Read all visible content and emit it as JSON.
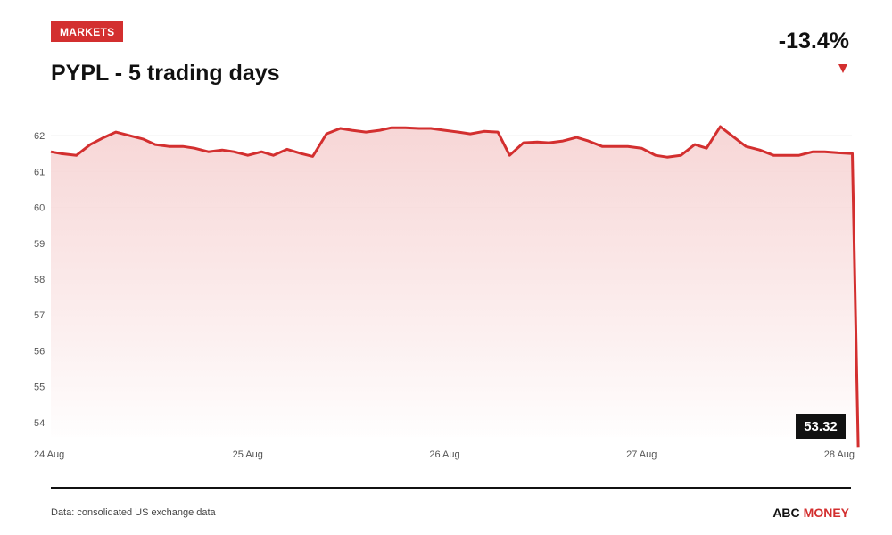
{
  "header": {
    "badge": "MARKETS",
    "title": "PYPL - 5 trading days",
    "change": "-13.4%"
  },
  "footer": {
    "source": "Data: consolidated US exchange data",
    "brand_part1": "ABC",
    "brand_part2": "MONEY"
  },
  "colors": {
    "accent": "#d32f2f",
    "line": "#d32f2f",
    "area_top": "#f6d2d2",
    "area_bottom": "#ffffff",
    "grid": "#ececec",
    "tooltip_bg": "#111111"
  },
  "chart_data": {
    "type": "area",
    "title": "PYPL - 5 trading days",
    "xlabel": "",
    "ylabel": "",
    "ylim": [
      53.6,
      62.4
    ],
    "yticks": [
      54,
      55,
      56,
      57,
      58,
      59,
      60,
      61,
      62
    ],
    "xlim": [
      0,
      4
    ],
    "xticks": [
      {
        "value": 0,
        "label": "24 Aug"
      },
      {
        "value": 1,
        "label": "25 Aug"
      },
      {
        "value": 2,
        "label": "26 Aug"
      },
      {
        "value": 3,
        "label": "27 Aug"
      },
      {
        "value": 4,
        "label": "28 Aug"
      }
    ],
    "grid": true,
    "last_value_label": "53.32",
    "series": [
      {
        "values": [
          [
            0.0,
            61.55
          ],
          [
            0.05,
            61.5
          ],
          [
            0.13,
            61.45
          ],
          [
            0.2,
            61.75
          ],
          [
            0.27,
            61.95
          ],
          [
            0.33,
            62.1
          ],
          [
            0.4,
            62.0
          ],
          [
            0.47,
            61.9
          ],
          [
            0.53,
            61.75
          ],
          [
            0.6,
            61.7
          ],
          [
            0.67,
            61.7
          ],
          [
            0.73,
            61.65
          ],
          [
            0.8,
            61.55
          ],
          [
            0.87,
            61.6
          ],
          [
            0.93,
            61.55
          ],
          [
            1.0,
            61.45
          ],
          [
            1.07,
            61.55
          ],
          [
            1.13,
            61.45
          ],
          [
            1.2,
            61.62
          ],
          [
            1.27,
            61.5
          ],
          [
            1.33,
            61.42
          ],
          [
            1.4,
            62.05
          ],
          [
            1.47,
            62.2
          ],
          [
            1.53,
            62.15
          ],
          [
            1.6,
            62.1
          ],
          [
            1.67,
            62.15
          ],
          [
            1.73,
            62.22
          ],
          [
            1.8,
            62.22
          ],
          [
            1.87,
            62.2
          ],
          [
            1.93,
            62.2
          ],
          [
            2.0,
            62.15
          ],
          [
            2.07,
            62.1
          ],
          [
            2.13,
            62.05
          ],
          [
            2.2,
            62.12
          ],
          [
            2.27,
            62.1
          ],
          [
            2.33,
            61.45
          ],
          [
            2.4,
            61.8
          ],
          [
            2.47,
            61.82
          ],
          [
            2.53,
            61.8
          ],
          [
            2.6,
            61.85
          ],
          [
            2.67,
            61.95
          ],
          [
            2.73,
            61.85
          ],
          [
            2.8,
            61.7
          ],
          [
            2.87,
            61.7
          ],
          [
            2.93,
            61.7
          ],
          [
            3.0,
            61.65
          ],
          [
            3.07,
            61.45
          ],
          [
            3.13,
            61.4
          ],
          [
            3.2,
            61.45
          ],
          [
            3.27,
            61.75
          ],
          [
            3.33,
            61.65
          ],
          [
            3.4,
            62.25
          ],
          [
            3.47,
            61.95
          ],
          [
            3.53,
            61.7
          ],
          [
            3.6,
            61.6
          ],
          [
            3.67,
            61.45
          ],
          [
            3.73,
            61.45
          ],
          [
            3.8,
            61.45
          ],
          [
            3.87,
            61.55
          ],
          [
            3.93,
            61.55
          ],
          [
            4.0,
            61.52
          ],
          [
            4.07,
            61.5
          ],
          [
            4.1,
            53.32
          ]
        ]
      }
    ]
  }
}
